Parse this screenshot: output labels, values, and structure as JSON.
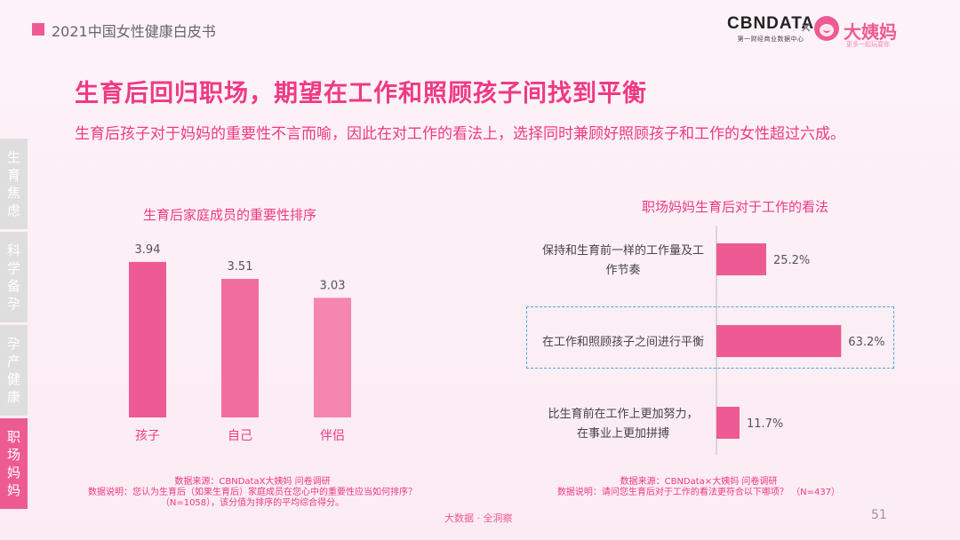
{
  "header": {
    "report_title": "2021中国女性健康白皮书",
    "cbn_name": "CBNDATA",
    "cbn_tagline": "第一财经商业数据中心",
    "times": "×",
    "dym_name": "大姨妈",
    "dym_tagline": "更多一起玩耍你"
  },
  "title": "生育后回归职场，期望在工作和照顾孩子间找到平衡",
  "subtitle": "生育后孩子对于妈妈的重要性不言而喻，因此在对工作的看法上，选择同时兼顾好照顾孩子和工作的女性超过六成。",
  "side_nav": [
    {
      "label": "生育焦虑",
      "active": false
    },
    {
      "label": "科学备孕",
      "active": false
    },
    {
      "label": "孕产健康",
      "active": false
    },
    {
      "label": "职场妈妈",
      "active": true
    }
  ],
  "chart_data": [
    {
      "type": "bar",
      "title": "生育后家庭成员的重要性排序",
      "categories": [
        "孩子",
        "自己",
        "伴侣"
      ],
      "values": [
        3.94,
        3.51,
        3.03
      ],
      "value_labels": [
        "3.94",
        "3.51",
        "3.03"
      ],
      "colors": [
        "#ee5a93",
        "#f16d9f",
        "#f486b0"
      ],
      "ylim": [
        0,
        4.5
      ],
      "grid": false
    },
    {
      "type": "bar",
      "orientation": "horizontal",
      "title": "职场妈妈生育后对于工作的看法",
      "categories": [
        [
          "保持和生育前一样的工作量及工",
          "作节奏"
        ],
        [
          "在工作和照顾孩子之间进行平衡"
        ],
        [
          "比生育前在工作上更加努力，",
          "在事业上更加拼搏"
        ]
      ],
      "values": [
        25.2,
        63.2,
        11.7
      ],
      "value_labels": [
        "25.2%",
        "63.2%",
        "11.7%"
      ],
      "highlight_index": 1,
      "color": "#ee5a93",
      "xlim": [
        0,
        100
      ],
      "grid": false
    }
  ],
  "sources": {
    "left": [
      "数据来源：CBNDataX大姨妈 问卷调研",
      "数据说明：您认为生育后（如果生育后）家庭成员在您心中的重要性应当如何排序？",
      "（N=1058），该分值为排序的平均综合得分。"
    ],
    "right": [
      "数据来源：CBNData×大姨妈 问卷调研",
      "数据说明：请问您生育后对于工作的看法更符合以下哪项？ （N=437）"
    ]
  },
  "footer": {
    "text": "大数据 · 全洞察",
    "page": "51"
  }
}
